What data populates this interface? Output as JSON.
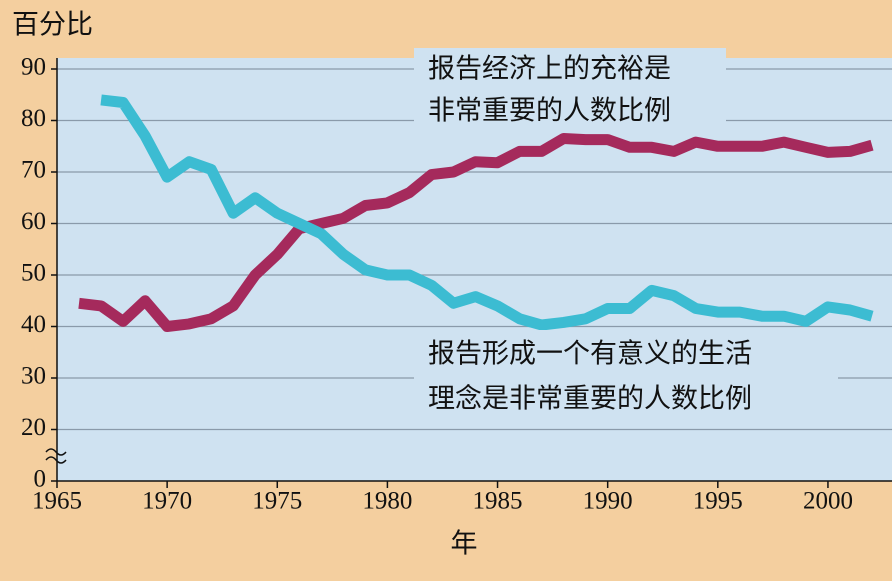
{
  "chart_data": {
    "type": "line",
    "ylabel": "百分比",
    "xlabel": "年",
    "x": [
      1966,
      1967,
      1968,
      1969,
      1970,
      1971,
      1972,
      1973,
      1974,
      1975,
      1976,
      1977,
      1978,
      1979,
      1980,
      1981,
      1982,
      1983,
      1984,
      1985,
      1986,
      1987,
      1988,
      1989,
      1990,
      1991,
      1992,
      1993,
      1994,
      1995,
      1996,
      1997,
      1998,
      1999,
      2000,
      2001,
      2002
    ],
    "series": [
      {
        "color": "#a52a5c",
        "values": [
          44.5,
          44,
          41,
          45,
          40,
          40.5,
          41.5,
          44,
          50,
          54,
          59,
          60,
          61,
          63.5,
          64,
          66,
          69.5,
          70,
          72,
          71.8,
          74,
          74,
          76.5,
          76.3,
          76.3,
          74.8,
          74.8,
          74,
          75.8,
          75,
          75,
          75,
          75.8,
          74.8,
          73.8,
          74,
          75.2
        ]
      },
      {
        "color": "#3cbcd2",
        "values": [
          null,
          84,
          83.5,
          77,
          69,
          72,
          70.5,
          62,
          65,
          62,
          60,
          58,
          54,
          51,
          50,
          50,
          48,
          44.5,
          45.8,
          44,
          41.5,
          40.3,
          40.8,
          41.5,
          43.5,
          43.5,
          47,
          46,
          43.5,
          42.8,
          42.8,
          42,
          42,
          41,
          43.8,
          43.2,
          42
        ]
      }
    ],
    "annotations": [
      {
        "lines": [
          "报告经济上的充裕是",
          "非常重要的人数比例"
        ]
      },
      {
        "lines": [
          "报告形成一个有意义的生活",
          "理念是非常重要的人数比例"
        ]
      }
    ],
    "xlim": [
      1965,
      2002
    ],
    "xticks": [
      1965,
      1970,
      1975,
      1980,
      1985,
      1990,
      1995,
      2000
    ],
    "ylim": [
      0,
      90
    ],
    "yticks": [
      0,
      20,
      30,
      40,
      50,
      60,
      70,
      80,
      90
    ],
    "axis_break": [
      0,
      20
    ],
    "grid": true,
    "plot_background": "#cfe2f1"
  }
}
